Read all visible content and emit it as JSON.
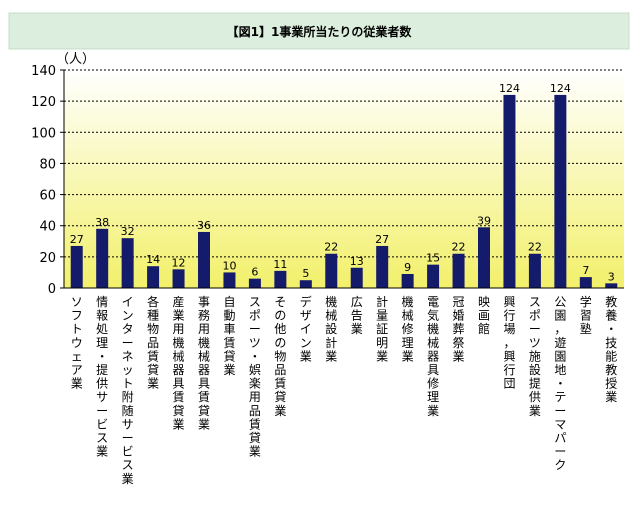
{
  "chart_data": {
    "type": "bar",
    "title": "【図1】1事業所当たりの従業者数",
    "ylabel": "（人）",
    "ylim": [
      0,
      140
    ],
    "yticks": [
      0,
      20,
      40,
      60,
      80,
      100,
      120,
      140
    ],
    "grid": true,
    "legend": "none",
    "categories": [
      "ソフトウェア業",
      "情報処理・提供サービス業",
      "インターネット附随サービス業",
      "各種物品賃貸業",
      "産業用機械器具賃貸業",
      "事務用機械器具賃貸業",
      "自動車賃貸業",
      "スポーツ・娯楽用品賃貸業",
      "その他の物品賃貸業",
      "デザイン業",
      "機械設計業",
      "広告業",
      "計量証明業",
      "機械修理業",
      "電気機械器具修理業",
      "冠婚葬祭業",
      "映画館",
      "興行場，興行団",
      "スポーツ施設提供業",
      "公園，遊園地・テーマパーク",
      "学習塾",
      "教養・技能教授業"
    ],
    "values": [
      27,
      38,
      32,
      14,
      12,
      36,
      10,
      6,
      11,
      5,
      22,
      13,
      27,
      9,
      15,
      22,
      39,
      124,
      22,
      124,
      7,
      3
    ],
    "colors": {
      "bar": "#151B6B",
      "plot_top": "#ffffff",
      "plot_bottom": "#f2f06a",
      "title_bg": "#dceedd",
      "grid": "#000000"
    }
  }
}
